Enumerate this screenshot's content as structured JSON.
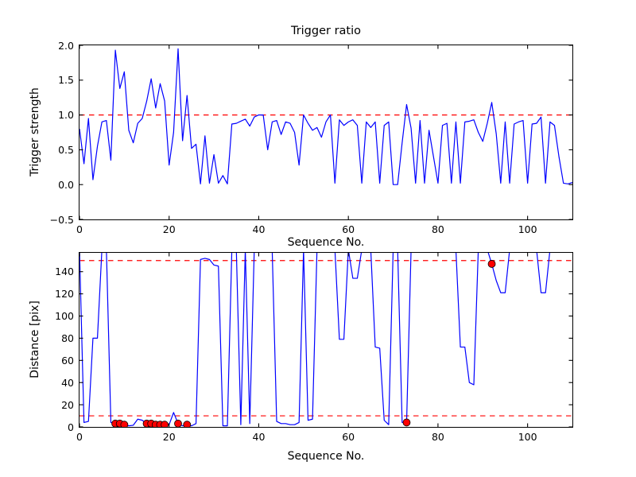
{
  "figure": {
    "title": "Trigger ratio",
    "top": {
      "xlabel": "Sequence No.",
      "ylabel": "Trigger strength"
    },
    "bottom": {
      "xlabel": "Sequence No.",
      "ylabel": "Distance [pix]"
    }
  },
  "colors": {
    "line": "#0000ff",
    "threshold": "#ff0000",
    "marker_fill": "#ff0000",
    "marker_edge": "#000000",
    "axis": "#000000",
    "background": "#ffffff"
  },
  "chart_data": [
    {
      "type": "line",
      "title": "Trigger ratio",
      "xlabel": "Sequence No.",
      "ylabel": "Trigger strength",
      "xlim": [
        0,
        110
      ],
      "ylim": [
        -0.5,
        2.0
      ],
      "xticks": [
        0,
        20,
        40,
        60,
        80,
        100
      ],
      "xtick_labels": [
        "0",
        "20",
        "40",
        "60",
        "80",
        "100"
      ],
      "yticks": [
        -0.5,
        0.0,
        0.5,
        1.0,
        1.5,
        2.0
      ],
      "ytick_labels": [
        "−0.5",
        "0.0",
        "0.5",
        "1.0",
        "1.5",
        "2.0"
      ],
      "grid": false,
      "legend": null,
      "threshold_lines": [
        1.0
      ],
      "x_start": 0,
      "x_step": 1,
      "y": [
        0.8,
        0.3,
        0.95,
        0.07,
        0.55,
        0.9,
        0.92,
        0.35,
        1.93,
        1.38,
        1.62,
        0.78,
        0.6,
        0.88,
        0.95,
        1.2,
        1.52,
        1.1,
        1.45,
        1.2,
        0.28,
        0.75,
        1.95,
        0.63,
        1.28,
        0.52,
        0.58,
        0.01,
        0.7,
        0.02,
        0.43,
        0.02,
        0.13,
        0.01,
        0.87,
        0.88,
        0.91,
        0.94,
        0.84,
        0.97,
        1.0,
        1.0,
        0.5,
        0.9,
        0.92,
        0.72,
        0.9,
        0.88,
        0.75,
        0.28,
        1.0,
        0.88,
        0.78,
        0.82,
        0.68,
        0.9,
        1.0,
        0.02,
        0.93,
        0.85,
        0.9,
        0.93,
        0.85,
        0.02,
        0.9,
        0.82,
        0.9,
        0.02,
        0.85,
        0.9,
        0.0,
        0.0,
        0.6,
        1.15,
        0.81,
        0.02,
        0.92,
        0.02,
        0.78,
        0.4,
        0.02,
        0.85,
        0.88,
        0.02,
        0.9,
        0.02,
        0.9,
        0.91,
        0.93,
        0.75,
        0.62,
        0.88,
        1.18,
        0.73,
        0.02,
        0.9,
        0.02,
        0.87,
        0.9,
        0.92,
        0.02,
        0.87,
        0.88,
        0.97,
        0.02,
        0.9,
        0.85,
        0.4,
        0.02,
        0.01,
        0.03
      ],
      "markers": []
    },
    {
      "type": "line",
      "title": "",
      "xlabel": "Sequence No.",
      "ylabel": "Distance [pix]",
      "xlim": [
        0,
        110
      ],
      "ylim": [
        0,
        157
      ],
      "xticks": [
        0,
        20,
        40,
        60,
        80,
        100
      ],
      "xtick_labels": [
        "0",
        "20",
        "40",
        "60",
        "80",
        "100"
      ],
      "yticks": [
        0,
        20,
        40,
        60,
        80,
        100,
        120,
        140
      ],
      "ytick_labels": [
        "0",
        "20",
        "40",
        "60",
        "80",
        "100",
        "120",
        "140"
      ],
      "grid": false,
      "legend": null,
      "threshold_lines": [
        150,
        10
      ],
      "x_start": 0,
      "x_step": 1,
      "y": [
        160,
        4,
        5,
        80,
        80,
        160,
        160,
        4,
        3,
        3,
        2,
        1,
        1.5,
        7,
        6,
        3,
        3,
        2,
        2,
        2,
        2,
        13,
        3,
        1,
        2,
        1,
        3,
        151,
        152,
        151,
        146,
        145,
        1,
        1,
        160,
        160,
        2,
        160,
        3,
        160,
        160,
        160,
        160,
        160,
        5,
        3,
        3,
        2,
        2,
        4,
        160,
        6,
        7,
        160,
        160,
        160,
        160,
        160,
        79,
        79,
        160,
        134,
        134,
        160,
        160,
        160,
        72,
        71,
        6,
        2,
        160,
        160,
        4,
        4,
        160,
        160,
        160,
        160,
        160,
        160,
        160,
        160,
        160,
        160,
        160,
        72,
        72,
        40,
        38,
        160,
        160,
        160,
        147,
        132,
        121,
        121,
        160,
        160,
        160,
        160,
        160,
        160,
        160,
        121,
        121,
        160,
        160,
        160,
        160,
        160,
        160
      ],
      "markers": [
        [
          8,
          3
        ],
        [
          9,
          3
        ],
        [
          10,
          2
        ],
        [
          15,
          3
        ],
        [
          16,
          3
        ],
        [
          17,
          2
        ],
        [
          18,
          2
        ],
        [
          19,
          2
        ],
        [
          22,
          3
        ],
        [
          24,
          2
        ],
        [
          73,
          4
        ],
        [
          92,
          147
        ]
      ]
    }
  ]
}
